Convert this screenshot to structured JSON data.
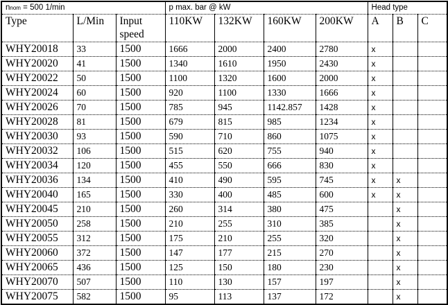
{
  "header": {
    "nominal_speed": "n",
    "nominal_speed_sub": "nom",
    "nominal_speed_value": " = 500 1/min",
    "pressure_group": "p max. bar @ kW",
    "head_type_group": "Head type",
    "columns": [
      "Type",
      "L/Min",
      "Input speed",
      "110KW",
      "132KW",
      "160KW",
      "200KW",
      "A",
      "B",
      "C"
    ]
  },
  "rows": [
    [
      "WHY20018",
      "33",
      "1500",
      "1666",
      "2000",
      "2400",
      "2780",
      "x",
      "",
      ""
    ],
    [
      "WHY20020",
      "41",
      "1500",
      "1340",
      "1610",
      "1950",
      "2430",
      "x",
      "",
      ""
    ],
    [
      "WHY20022",
      "50",
      "1500",
      "1100",
      "1320",
      "1600",
      "2000",
      "x",
      "",
      ""
    ],
    [
      "WHY20024",
      "60",
      "1500",
      "920",
      "1100",
      "1330",
      "1666",
      "x",
      "",
      ""
    ],
    [
      "WHY20026",
      "70",
      "1500",
      "785",
      "945",
      "1142.857",
      "1428",
      "x",
      "",
      ""
    ],
    [
      "WHY20028",
      "81",
      "1500",
      "679",
      "815",
      "985",
      "1234",
      "x",
      "",
      ""
    ],
    [
      "WHY20030",
      "93",
      "1500",
      "590",
      "710",
      "860",
      "1075",
      "x",
      "",
      ""
    ],
    [
      "WHY20032",
      "106",
      "1500",
      "515",
      "620",
      "755",
      "940",
      "x",
      "",
      ""
    ],
    [
      "WHY20034",
      "120",
      "1500",
      "455",
      "550",
      "666",
      "830",
      "x",
      "",
      ""
    ],
    [
      "WHY20036",
      "134",
      "1500",
      "410",
      "490",
      "595",
      "745",
      "x",
      "x",
      ""
    ],
    [
      "WHY20040",
      "165",
      "1500",
      "330",
      "400",
      "485",
      "600",
      "x",
      "x",
      ""
    ],
    [
      "WHY20045",
      "210",
      "1500",
      "260",
      "314",
      "380",
      "475",
      "",
      "x",
      ""
    ],
    [
      "WHY20050",
      "258",
      "1500",
      "210",
      "255",
      "310",
      "385",
      "",
      "x",
      ""
    ],
    [
      "WHY20055",
      "312",
      "1500",
      "175",
      "210",
      "255",
      "320",
      "",
      "x",
      ""
    ],
    [
      "WHY20060",
      "372",
      "1500",
      "147",
      "177",
      "215",
      "270",
      "",
      "x",
      ""
    ],
    [
      "WHY20065",
      "436",
      "1500",
      "125",
      "150",
      "180",
      "230",
      "",
      "x",
      ""
    ],
    [
      "WHY20070",
      "507",
      "1500",
      "110",
      "130",
      "157",
      "197",
      "",
      "x",
      ""
    ],
    [
      "WHY20075",
      "582",
      "1500",
      "95",
      "113",
      "137",
      "172",
      "",
      "x",
      ""
    ]
  ]
}
